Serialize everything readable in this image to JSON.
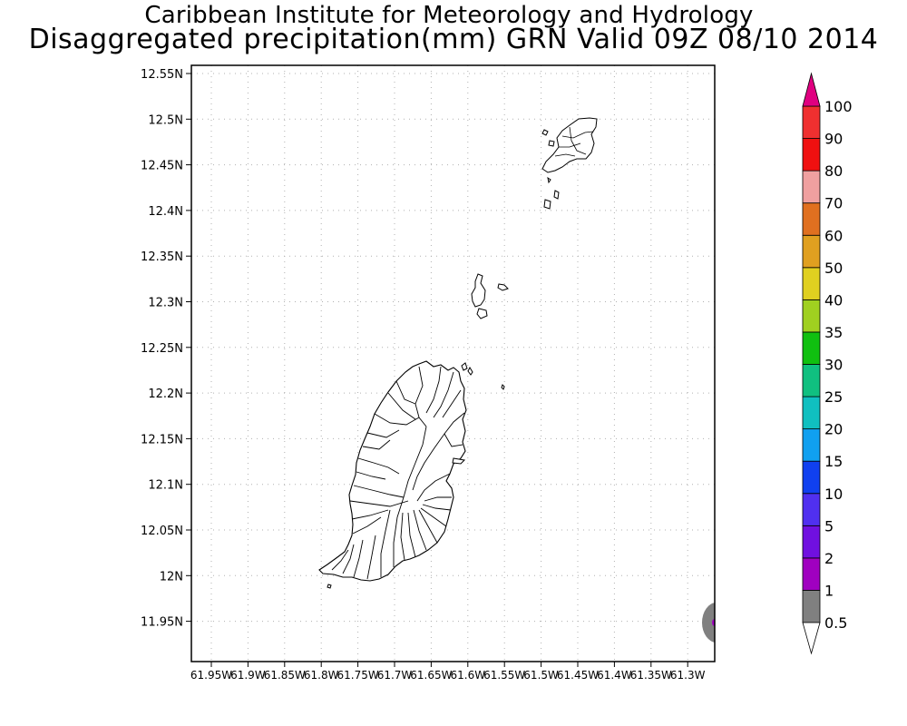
{
  "header": {
    "title": "Caribbean Institute for Meteorology and Hydrology",
    "subtitle": "Disaggregated precipitation(mm) GRN Valid 09Z 08/10 2014"
  },
  "map": {
    "lat_ticks": [
      "12.55N",
      "12.5N",
      "12.45N",
      "12.4N",
      "12.35N",
      "12.3N",
      "12.25N",
      "12.2N",
      "12.15N",
      "12.1N",
      "12.05N",
      "12N",
      "11.95N"
    ],
    "lon_ticks": [
      "61.95W",
      "61.9W",
      "61.85W",
      "61.8W",
      "61.75W",
      "61.7W",
      "61.65W",
      "61.6W",
      "61.55W",
      "61.5W",
      "61.45W",
      "61.4W",
      "61.35W",
      "61.3W"
    ],
    "gridlines": true,
    "features": [
      {
        "name": "grenada-main-island"
      },
      {
        "name": "carriacou"
      },
      {
        "name": "small-islands"
      },
      {
        "name": "precip-cell-southeast",
        "value_range": "0.5-1"
      }
    ]
  },
  "legend": {
    "orientation": "vertical",
    "placement": "right",
    "levels": [
      "0.5",
      "1",
      "2",
      "5",
      "10",
      "15",
      "20",
      "25",
      "30",
      "35",
      "40",
      "50",
      "60",
      "70",
      "80",
      "90",
      "100"
    ],
    "colors": [
      "#808080",
      "#a000c0",
      "#7010e0",
      "#5030f0",
      "#1040f0",
      "#10a0f0",
      "#10c0c0",
      "#10c080",
      "#10c010",
      "#a0d020",
      "#e0d020",
      "#e0a020",
      "#e07020",
      "#f0a0a0",
      "#f01010",
      "#f03030",
      "#e00080"
    ],
    "under_color": "#ffffff",
    "over_color": "#e00080"
  }
}
